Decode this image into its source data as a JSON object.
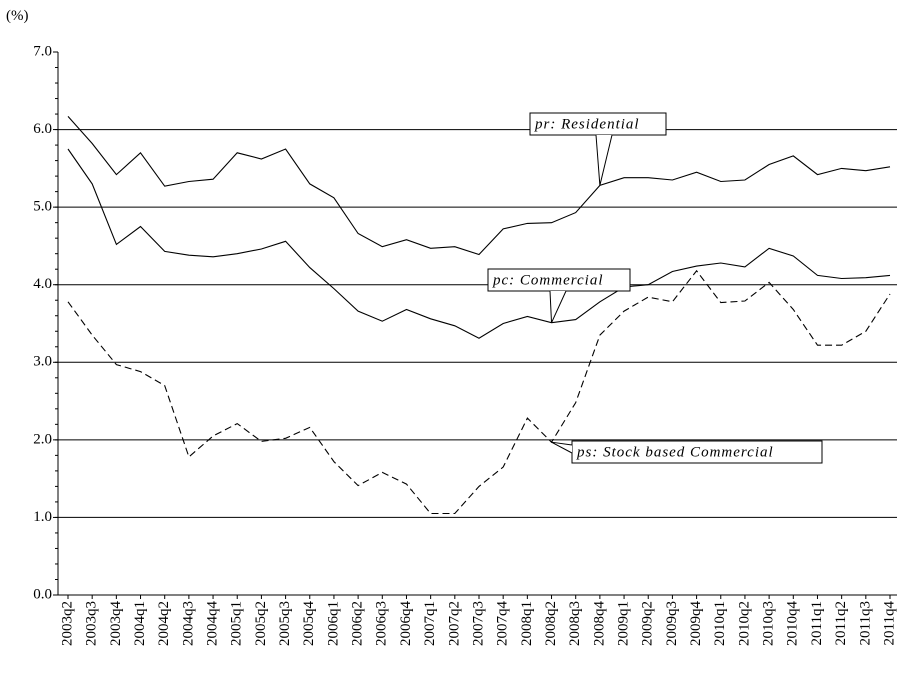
{
  "chart_data": {
    "type": "line",
    "y_label": "(%)",
    "categories": [
      "2003q2",
      "2003q3",
      "2003q4",
      "2004q1",
      "2004q2",
      "2004q3",
      "2004q4",
      "2005q1",
      "2005q2",
      "2005q3",
      "2005q4",
      "2006q1",
      "2006q2",
      "2006q3",
      "2006q4",
      "2007q1",
      "2007q2",
      "2007q3",
      "2007q4",
      "2008q1",
      "2008q2",
      "2008q3",
      "2008q4",
      "2009q1",
      "2009q2",
      "2009q3",
      "2009q4",
      "2010q1",
      "2010q2",
      "2010q3",
      "2010q4",
      "2011q1",
      "2011q2",
      "2011q3",
      "2011q4"
    ],
    "series": [
      {
        "name": "pr: Residential",
        "color": "#000000",
        "linestyle": "solid",
        "values": [
          6.17,
          5.82,
          5.42,
          5.7,
          5.27,
          5.33,
          5.36,
          5.7,
          5.62,
          5.75,
          5.3,
          5.12,
          4.66,
          4.49,
          4.58,
          4.47,
          4.49,
          4.39,
          4.72,
          4.79,
          4.8,
          4.93,
          5.28,
          5.38,
          5.38,
          5.35,
          5.45,
          5.33,
          5.35,
          5.55,
          5.66,
          5.42,
          5.5,
          5.47,
          5.52
        ]
      },
      {
        "name": "pc: Commercial",
        "color": "#000000",
        "linestyle": "solid",
        "values": [
          5.75,
          5.3,
          4.52,
          4.75,
          4.43,
          4.38,
          4.36,
          4.4,
          4.46,
          4.56,
          4.22,
          3.95,
          3.66,
          3.53,
          3.68,
          3.56,
          3.47,
          3.31,
          3.5,
          3.59,
          3.51,
          3.55,
          3.78,
          3.97,
          4.0,
          4.17,
          4.24,
          4.28,
          4.23,
          4.47,
          4.37,
          4.12,
          4.08,
          4.09,
          4.12
        ]
      },
      {
        "name": "ps: Stock based Commercial",
        "color": "#000000",
        "linestyle": "dashed",
        "values": [
          3.78,
          3.35,
          2.97,
          2.88,
          2.7,
          1.78,
          2.05,
          2.21,
          1.98,
          2.02,
          2.16,
          1.72,
          1.41,
          1.58,
          1.43,
          1.05,
          1.05,
          1.4,
          1.65,
          2.28,
          1.97,
          2.48,
          3.35,
          3.66,
          3.84,
          3.78,
          4.18,
          3.77,
          3.79,
          4.03,
          3.68,
          3.22,
          3.22,
          3.4,
          3.88
        ]
      }
    ],
    "ylim": [
      0,
      7
    ],
    "yticks": [
      {
        "value": 0,
        "label": "0.0"
      },
      {
        "value": 1,
        "label": "1.0"
      },
      {
        "value": 2,
        "label": "2.0"
      },
      {
        "value": 3,
        "label": "3.0"
      },
      {
        "value": 4,
        "label": "4.0"
      },
      {
        "value": 5,
        "label": "5.0"
      },
      {
        "value": 6,
        "label": "6.0"
      },
      {
        "value": 7,
        "label": "7.0"
      }
    ],
    "grid": true
  }
}
